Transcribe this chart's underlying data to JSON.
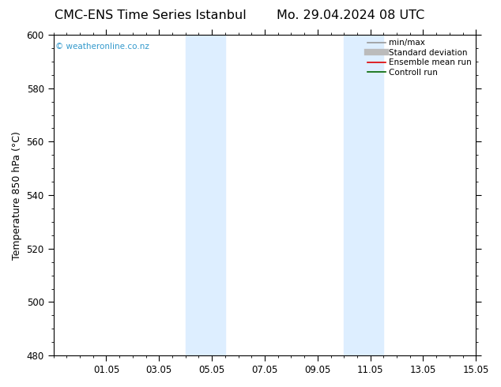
{
  "title_left": "CMC-ENS Time Series Istanbul",
  "title_right": "Mo. 29.04.2024 08 UTC",
  "ylabel": "Temperature 850 hPa (°C)",
  "ylim": [
    480,
    600
  ],
  "yticks": [
    480,
    500,
    520,
    540,
    560,
    580,
    600
  ],
  "xlim": [
    0,
    16
  ],
  "xtick_labels": [
    "01.05",
    "03.05",
    "05.05",
    "07.05",
    "09.05",
    "11.05",
    "13.05",
    "15.05"
  ],
  "xtick_positions": [
    2,
    4,
    6,
    8,
    10,
    12,
    14,
    16
  ],
  "shaded_bands": [
    {
      "x_start": 5,
      "x_end": 6.5,
      "color": "#ddeeff"
    },
    {
      "x_start": 11,
      "x_end": 12.5,
      "color": "#ddeeff"
    }
  ],
  "watermark_text": "© weatheronline.co.nz",
  "watermark_color": "#3399cc",
  "legend_entries": [
    {
      "label": "min/max",
      "color": "#999999",
      "lw": 1.2,
      "ls": "-"
    },
    {
      "label": "Standard deviation",
      "color": "#bbbbbb",
      "lw": 6,
      "ls": "-"
    },
    {
      "label": "Ensemble mean run",
      "color": "#dd0000",
      "lw": 1.2,
      "ls": "-"
    },
    {
      "label": "Controll run",
      "color": "#006600",
      "lw": 1.2,
      "ls": "-"
    }
  ],
  "background_color": "#ffffff",
  "title_fontsize": 11.5,
  "axis_label_fontsize": 9,
  "tick_fontsize": 8.5,
  "legend_fontsize": 7.5
}
